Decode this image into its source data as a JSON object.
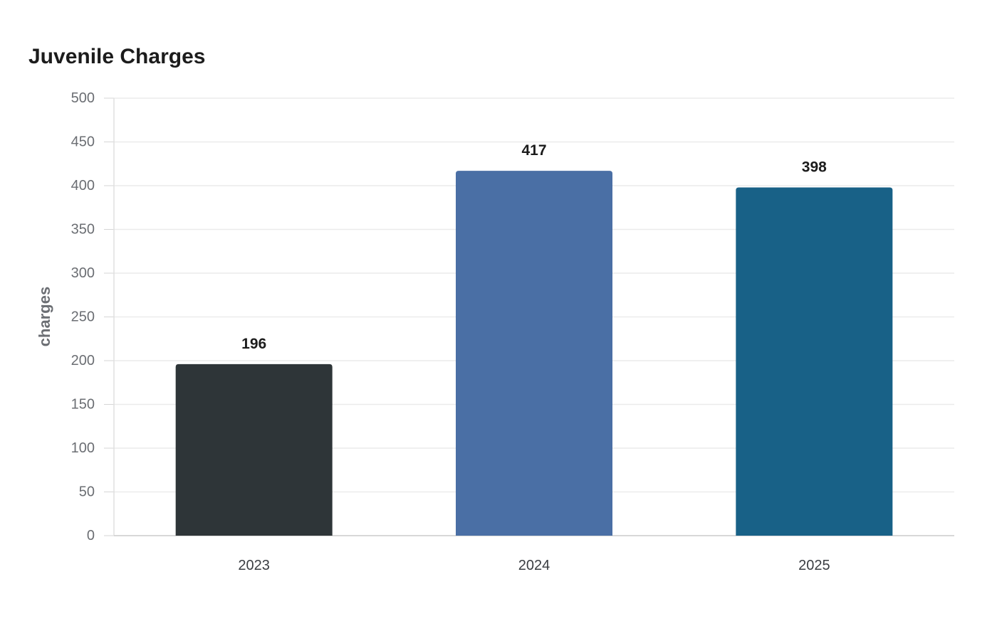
{
  "chart_data": {
    "type": "bar",
    "title": "Juvenile Charges",
    "xlabel": "",
    "ylabel": "charges",
    "categories": [
      "2023",
      "2024",
      "2025"
    ],
    "values": [
      196,
      417,
      398
    ],
    "bar_colors": [
      "#2e3538",
      "#4a6fa5",
      "#186187"
    ],
    "ylim": [
      0,
      500
    ],
    "yticks": [
      0,
      50,
      100,
      150,
      200,
      250,
      300,
      350,
      400,
      450,
      500
    ],
    "grid": true,
    "data_labels": true
  }
}
